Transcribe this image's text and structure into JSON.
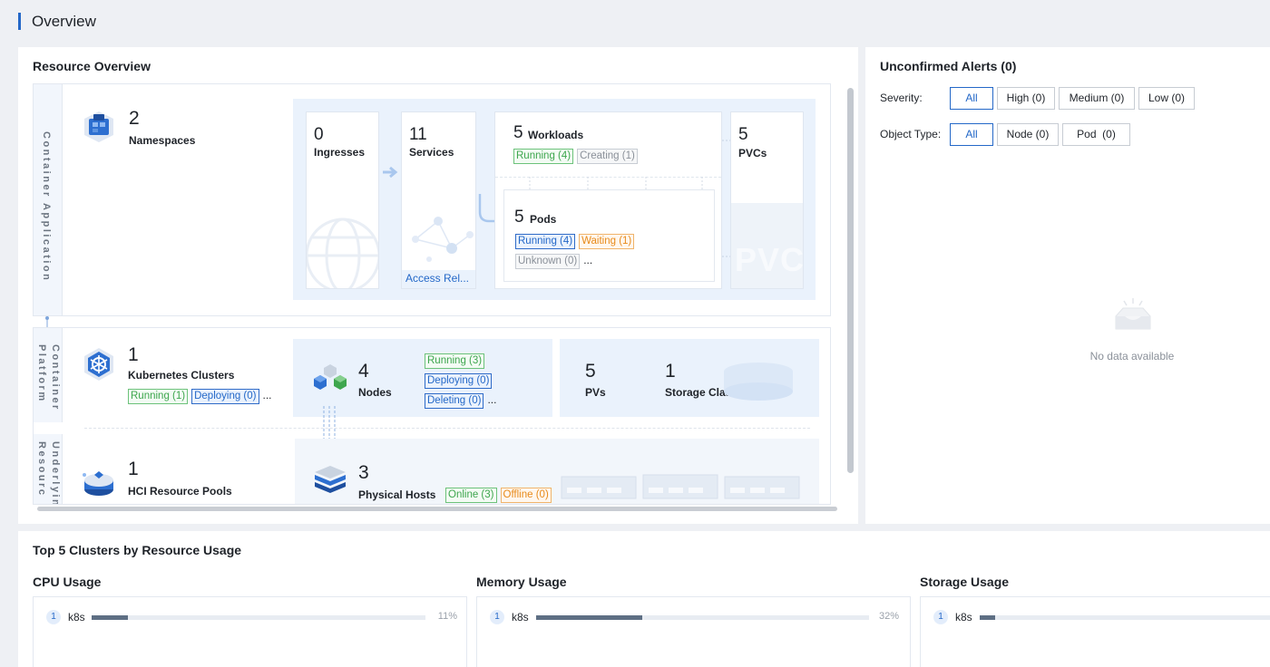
{
  "page": {
    "title": "Overview"
  },
  "resource_overview": {
    "title": "Resource Overview",
    "container_application": {
      "label": "Container Application",
      "namespaces": {
        "count": "2",
        "label": "Namespaces"
      },
      "ingresses": {
        "count": "0",
        "label": "Ingresses"
      },
      "services": {
        "count": "11",
        "label": "Services",
        "link": "Access Rel..."
      },
      "workloads": {
        "count": "5",
        "label": "Workloads",
        "tags": [
          "Running (4)",
          "Creating (1)"
        ]
      },
      "pods": {
        "count": "5",
        "label": "Pods",
        "tags": [
          "Running (4)",
          "Waiting (1)",
          "Unknown (0)"
        ],
        "more": "..."
      },
      "pvcs": {
        "count": "5",
        "label": "PVCs",
        "watermark": "PVC"
      }
    },
    "container_platform": {
      "label": "Container Platform",
      "clusters": {
        "count": "1",
        "label": "Kubernetes Clusters",
        "tags": [
          "Running (1)",
          "Deploying (0)"
        ],
        "more": "..."
      },
      "nodes": {
        "count": "4",
        "label": "Nodes",
        "tags": [
          "Running (3)",
          "Deploying (0)",
          "Deleting (0)"
        ],
        "more": "..."
      },
      "pvs": {
        "count": "5",
        "label": "PVs"
      },
      "storage_classes": {
        "count": "1",
        "label": "Storage Classes"
      }
    },
    "underlying_resources": {
      "label": "Underlying Resourc",
      "hci_pools": {
        "count": "1",
        "label": "HCI Resource Pools"
      },
      "physical_hosts": {
        "count": "3",
        "label": "Physical Hosts",
        "tags": [
          "Online (3)",
          "Offline (0)"
        ]
      }
    }
  },
  "alerts": {
    "title": "Unconfirmed Alerts (0)",
    "severity_label": "Severity:",
    "severity_options": [
      "All",
      "High (0)",
      "Medium (0)",
      "Low (0)"
    ],
    "object_type_label": "Object Type:",
    "object_type_options": [
      "All",
      "Node (0)",
      "Pod  (0)"
    ],
    "empty_text": "No data available"
  },
  "top5": {
    "title": "Top 5 Clusters by Resource Usage",
    "cpu": {
      "title": "CPU Usage",
      "rank": "1",
      "name": "k8s",
      "percent": "11%",
      "value": 0.11
    },
    "memory": {
      "title": "Memory Usage",
      "rank": "1",
      "name": "k8s",
      "percent": "32%",
      "value": 0.32
    },
    "storage": {
      "title": "Storage Usage",
      "rank": "1",
      "name": "k8s",
      "value": 0.05
    }
  },
  "colors": {
    "accent": "#2468c8",
    "running": "#3ea64e",
    "waiting": "#e88b1c",
    "neutral": "#8a9099"
  }
}
